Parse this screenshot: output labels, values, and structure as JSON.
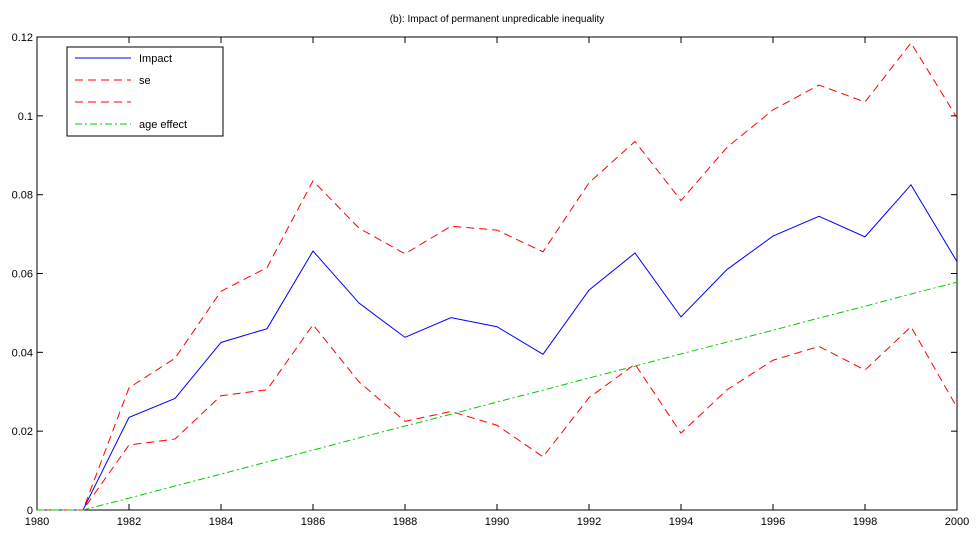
{
  "chart_data": {
    "type": "line",
    "title": "(b): Impact of permanent unpredicable inequality",
    "x": [
      1980,
      1981,
      1982,
      1983,
      1984,
      1985,
      1986,
      1987,
      1988,
      1989,
      1990,
      1991,
      1992,
      1993,
      1994,
      1995,
      1996,
      1997,
      1998,
      1999,
      2000
    ],
    "series": [
      {
        "name": "Impact",
        "color": "#0000ff",
        "dash": "solid",
        "values": [
          0,
          0,
          0.0235,
          0.0283,
          0.0425,
          0.046,
          0.0657,
          0.0525,
          0.0438,
          0.0488,
          0.0465,
          0.0395,
          0.0558,
          0.0652,
          0.049,
          0.061,
          0.0695,
          0.0745,
          0.0693,
          0.0825,
          0.063
        ]
      },
      {
        "name": "se",
        "color": "#ff0000",
        "dash": "dashed",
        "values": [
          0,
          0,
          0.031,
          0.0385,
          0.0555,
          0.0615,
          0.0835,
          0.0715,
          0.065,
          0.072,
          0.071,
          0.0655,
          0.083,
          0.0935,
          0.0785,
          0.092,
          0.1015,
          0.1078,
          0.1035,
          0.1185,
          0.0995
        ]
      },
      {
        "color": "#ff0000",
        "dash": "dashed",
        "values": [
          0,
          0,
          0.0165,
          0.018,
          0.029,
          0.0305,
          0.047,
          0.0325,
          0.0225,
          0.025,
          0.0215,
          0.0135,
          0.0285,
          0.037,
          0.0195,
          0.0305,
          0.038,
          0.0415,
          0.0355,
          0.0465,
          0.026
        ]
      },
      {
        "name": "age effect",
        "color": "#00cc00",
        "dash": "dashdot",
        "values": [
          0,
          0,
          0.003,
          0.0061,
          0.0091,
          0.0122,
          0.0152,
          0.0183,
          0.0213,
          0.0243,
          0.0274,
          0.0304,
          0.0335,
          0.0365,
          0.0396,
          0.0426,
          0.0456,
          0.0487,
          0.0517,
          0.0548,
          0.0578
        ]
      }
    ],
    "xlim": [
      1980,
      2000
    ],
    "xticks": [
      1980,
      1982,
      1984,
      1986,
      1988,
      1990,
      1992,
      1994,
      1996,
      1998,
      2000
    ],
    "ylim": [
      0,
      0.12
    ],
    "yticks": [
      0,
      0.02,
      0.04,
      0.06,
      0.08,
      0.1,
      0.12
    ],
    "legend": "upper-left"
  }
}
